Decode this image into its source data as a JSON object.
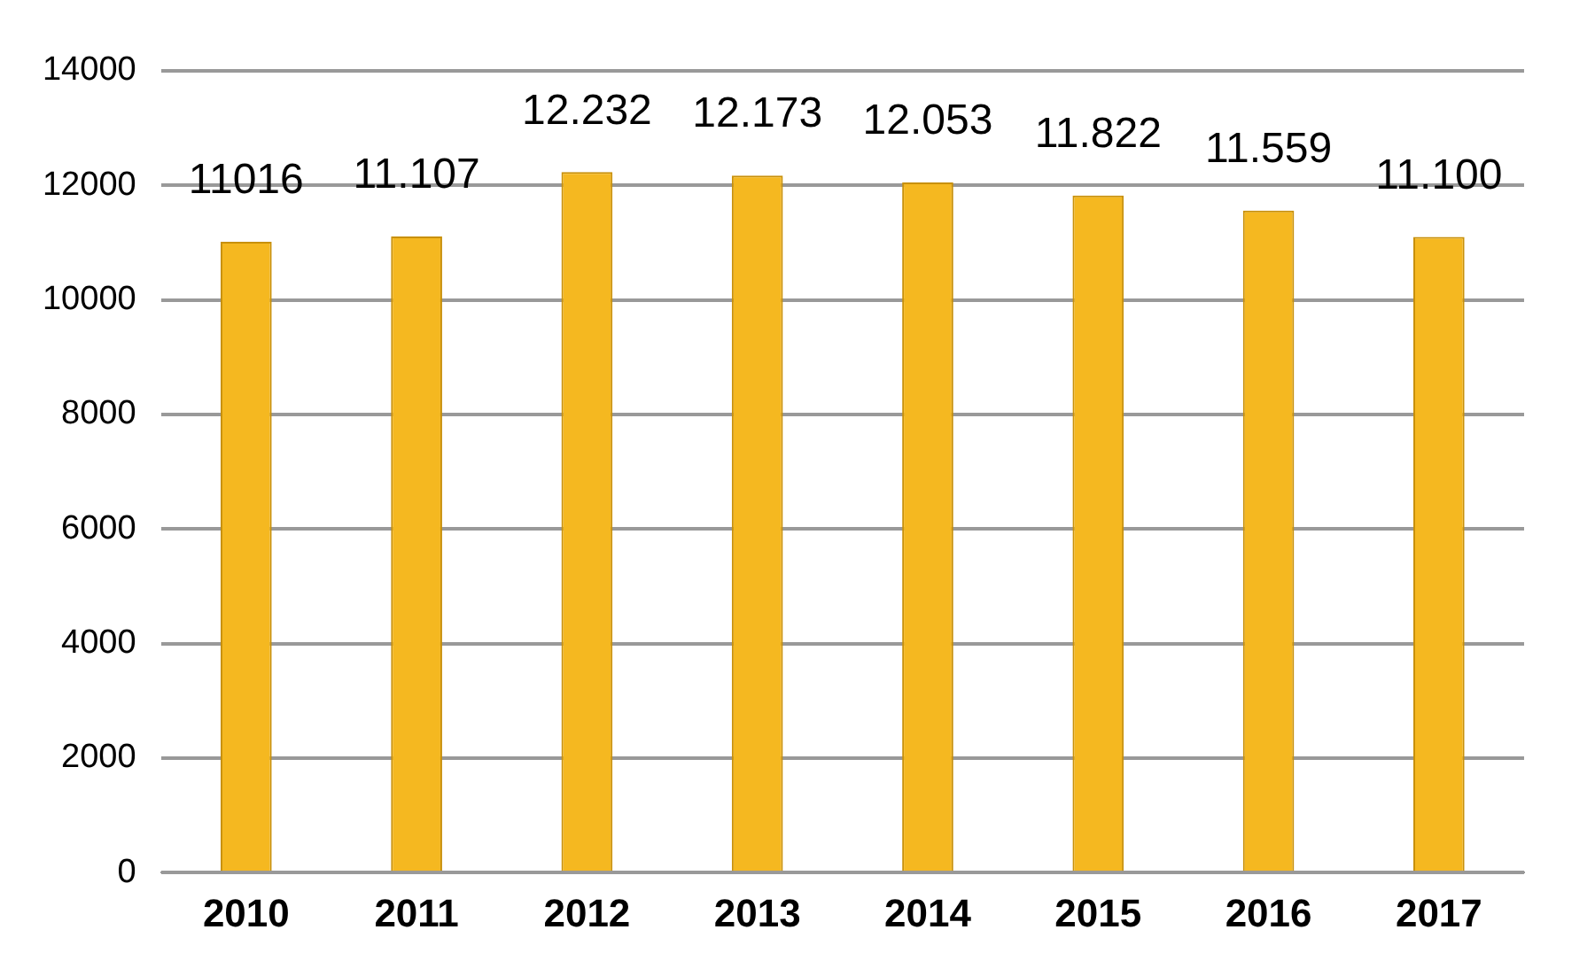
{
  "chart_data": {
    "type": "bar",
    "categories": [
      "2010",
      "2011",
      "2012",
      "2013",
      "2014",
      "2015",
      "2016",
      "2017"
    ],
    "values": [
      11016,
      11107,
      12232,
      12173,
      12053,
      11822,
      11559,
      11100
    ],
    "value_labels": [
      "11016",
      "11.107",
      "12.232",
      "12.173",
      "12.053",
      "11.822",
      "11.559",
      "11.100"
    ],
    "color": "#f5b820",
    "ylim": [
      0,
      14000
    ],
    "yticks": [
      0,
      2000,
      4000,
      6000,
      8000,
      10000,
      12000,
      14000
    ],
    "grid": "y",
    "legend": false
  }
}
